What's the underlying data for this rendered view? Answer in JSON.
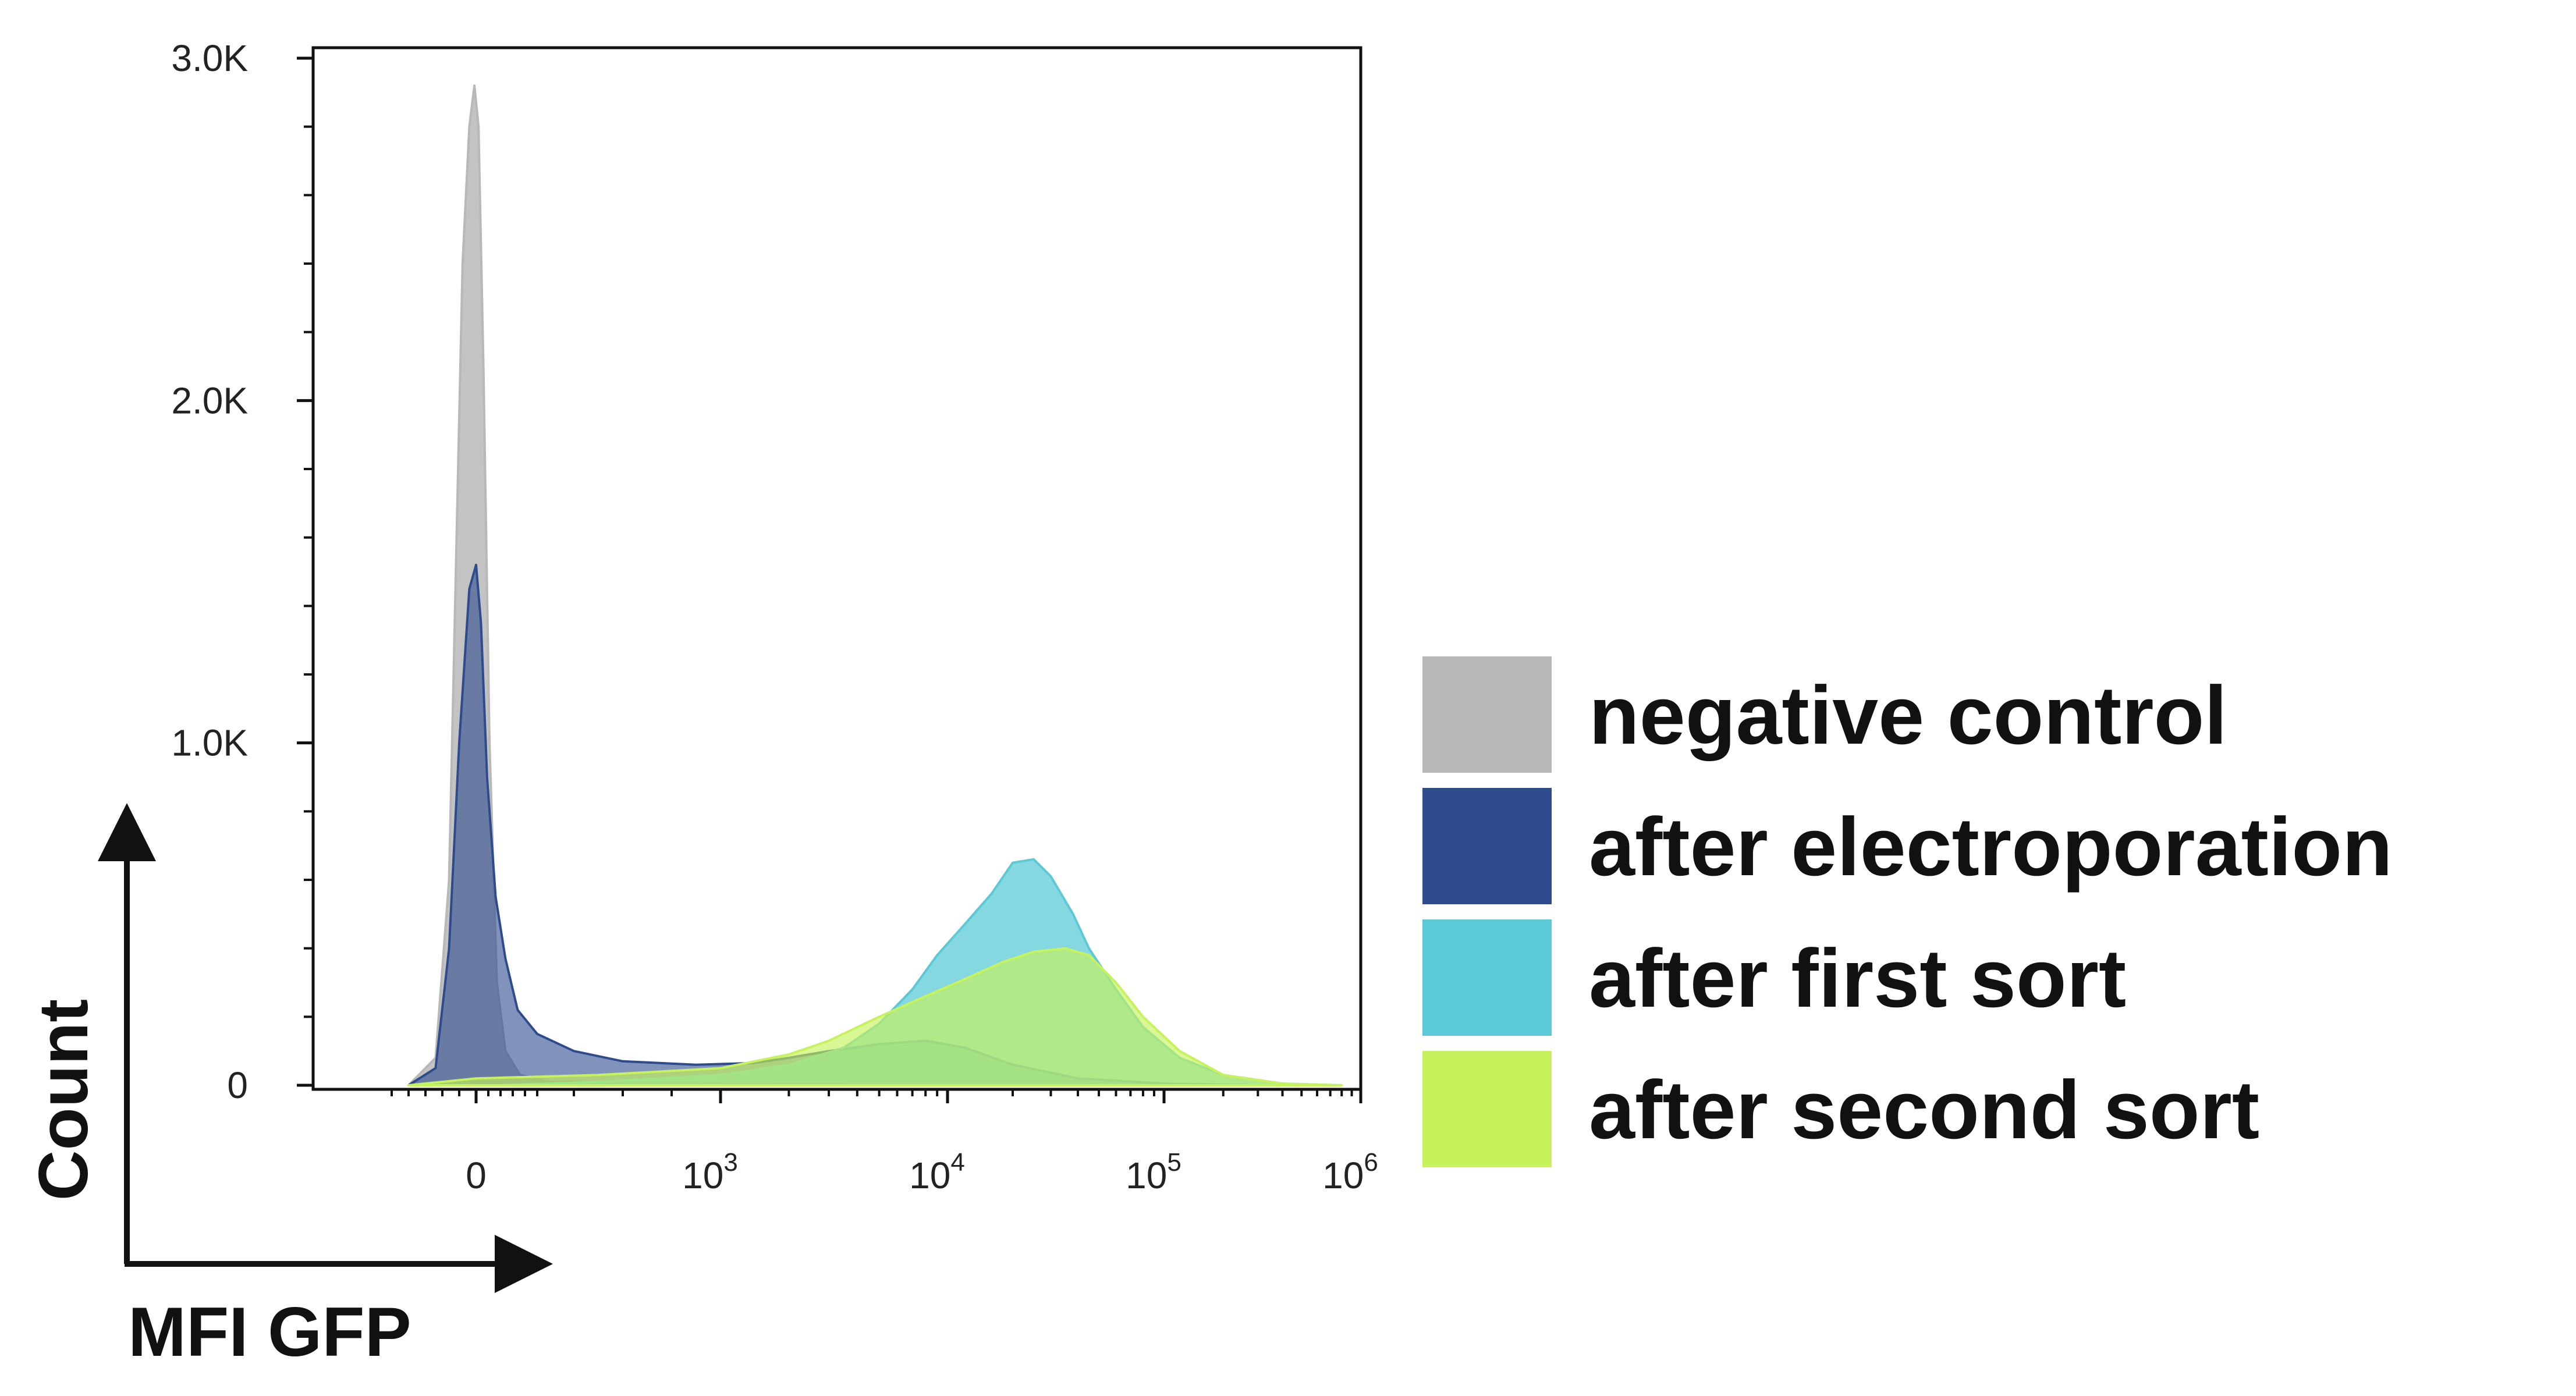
{
  "chart_data": {
    "type": "area",
    "xlabel": "MFI GFP",
    "ylabel": "Count",
    "x_scale": "biexponential (linear near 0, log above)",
    "y_ticks": [
      {
        "value": 0,
        "label": "0"
      },
      {
        "value": 1000,
        "label": "1.0K"
      },
      {
        "value": 2000,
        "label": "2.0K"
      },
      {
        "value": 3000,
        "label": "3.0K"
      }
    ],
    "x_ticks": [
      {
        "value": 0,
        "base": "0",
        "exp": ""
      },
      {
        "value": 1000,
        "base": "10",
        "exp": "3"
      },
      {
        "value": 10000,
        "base": "10",
        "exp": "4"
      },
      {
        "value": 100000,
        "base": "10",
        "exp": "5"
      },
      {
        "value": 1000000,
        "base": "10",
        "exp": "6"
      }
    ],
    "ylim": [
      0,
      3100
    ],
    "legend_position": "right",
    "series": [
      {
        "name": "negative control",
        "color": "#b8b8b8",
        "points": [
          [
            -200,
            0
          ],
          [
            -120,
            80
          ],
          [
            -80,
            600
          ],
          [
            -60,
            1500
          ],
          [
            -40,
            2400
          ],
          [
            -20,
            2800
          ],
          [
            -5,
            2920
          ],
          [
            10,
            2800
          ],
          [
            30,
            2100
          ],
          [
            55,
            1000
          ],
          [
            85,
            300
          ],
          [
            120,
            100
          ],
          [
            180,
            30
          ],
          [
            300,
            10
          ],
          [
            1000,
            5
          ],
          [
            10000,
            0
          ]
        ]
      },
      {
        "name": "after electroporation",
        "color": "#2e4b8e",
        "points": [
          [
            -200,
            0
          ],
          [
            -120,
            50
          ],
          [
            -80,
            400
          ],
          [
            -50,
            1000
          ],
          [
            -20,
            1450
          ],
          [
            0,
            1520
          ],
          [
            20,
            1350
          ],
          [
            45,
            900
          ],
          [
            80,
            550
          ],
          [
            120,
            370
          ],
          [
            170,
            220
          ],
          [
            250,
            150
          ],
          [
            400,
            100
          ],
          [
            600,
            70
          ],
          [
            900,
            60
          ],
          [
            1400,
            65
          ],
          [
            2000,
            80
          ],
          [
            3000,
            100
          ],
          [
            5000,
            120
          ],
          [
            8000,
            130
          ],
          [
            12000,
            110
          ],
          [
            20000,
            60
          ],
          [
            40000,
            20
          ],
          [
            100000,
            5
          ],
          [
            300000,
            0
          ]
        ]
      },
      {
        "name": "after first sort",
        "color": "#5cc9d6",
        "points": [
          [
            100,
            0
          ],
          [
            500,
            10
          ],
          [
            1000,
            30
          ],
          [
            2000,
            60
          ],
          [
            3500,
            110
          ],
          [
            5000,
            180
          ],
          [
            7000,
            280
          ],
          [
            9000,
            380
          ],
          [
            12000,
            470
          ],
          [
            16000,
            560
          ],
          [
            20000,
            650
          ],
          [
            25000,
            660
          ],
          [
            30000,
            610
          ],
          [
            38000,
            500
          ],
          [
            45000,
            400
          ],
          [
            60000,
            280
          ],
          [
            80000,
            170
          ],
          [
            120000,
            80
          ],
          [
            200000,
            30
          ],
          [
            400000,
            5
          ],
          [
            800000,
            0
          ]
        ]
      },
      {
        "name": "after second sort",
        "color": "#c6f25c",
        "points": [
          [
            -200,
            0
          ],
          [
            0,
            20
          ],
          [
            500,
            30
          ],
          [
            1000,
            50
          ],
          [
            2000,
            90
          ],
          [
            3000,
            130
          ],
          [
            5000,
            200
          ],
          [
            8000,
            260
          ],
          [
            12000,
            310
          ],
          [
            18000,
            360
          ],
          [
            25000,
            390
          ],
          [
            35000,
            400
          ],
          [
            45000,
            380
          ],
          [
            60000,
            300
          ],
          [
            80000,
            200
          ],
          [
            120000,
            100
          ],
          [
            200000,
            30
          ],
          [
            400000,
            5
          ],
          [
            800000,
            0
          ]
        ]
      }
    ]
  }
}
